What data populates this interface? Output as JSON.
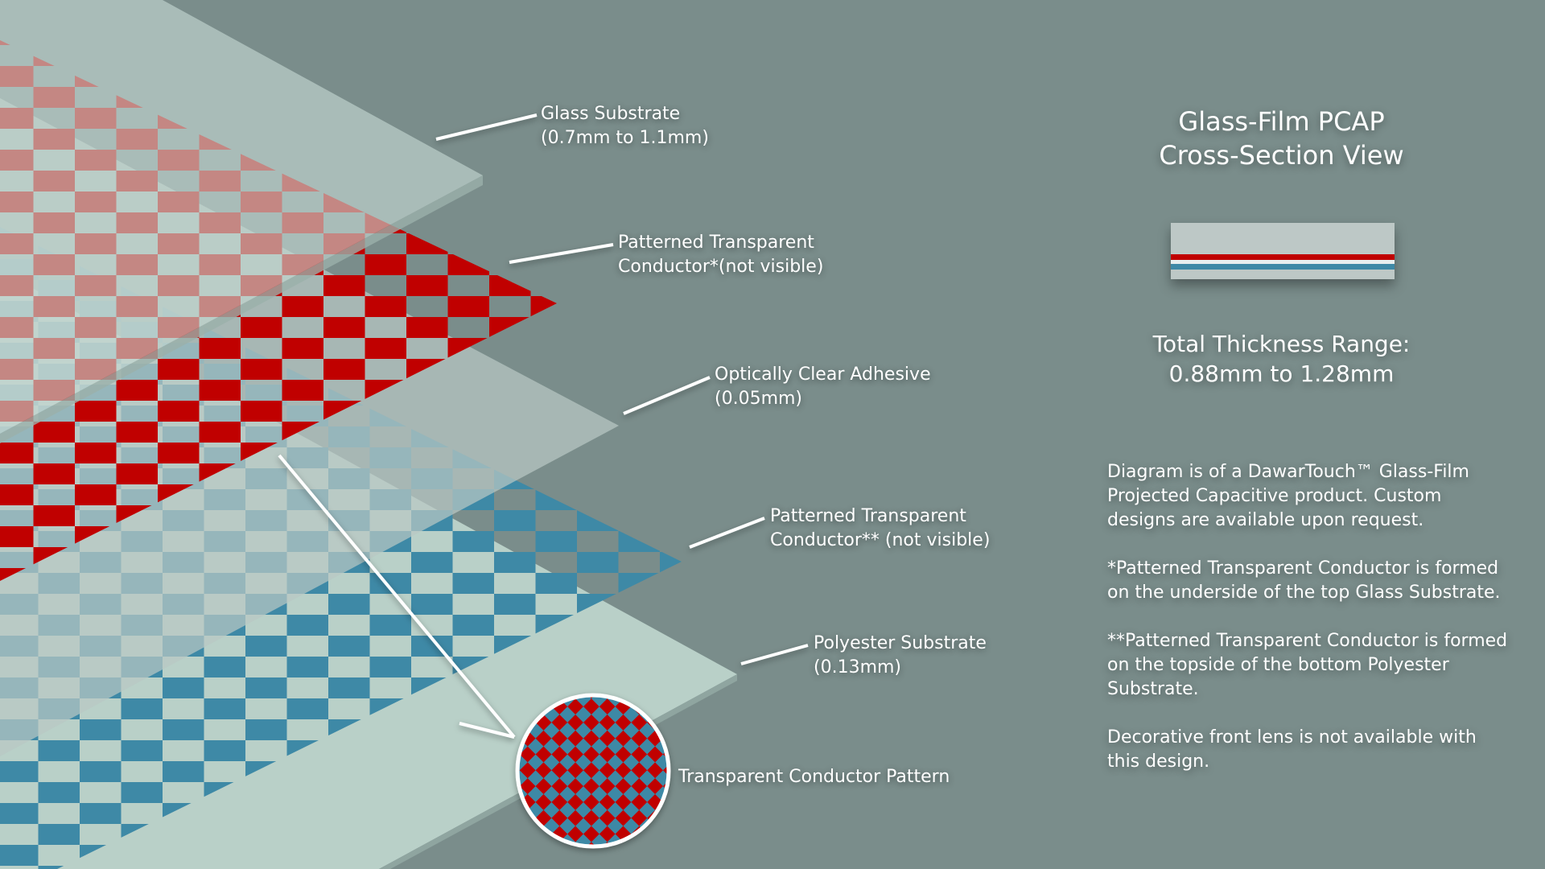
{
  "colors": {
    "background": "#7a8d8b",
    "glass": "#c6dad3",
    "polyester": "#b9d0c8",
    "red_conductor": "#c00000",
    "blue_conductor": "#3e89a6",
    "oca": "#b8c7c4"
  },
  "labels": {
    "glass_substrate": [
      "Glass Substrate",
      "(0.7mm to 1.1mm)"
    ],
    "conductor_top": [
      "Patterned Transparent",
      "Conductor*(not visible)"
    ],
    "adhesive": [
      "Optically Clear Adhesive",
      "(0.05mm)"
    ],
    "conductor_bottom": [
      "Patterned Transparent",
      "Conductor** (not visible)"
    ],
    "polyester_substrate": [
      "Polyester Substrate",
      "(0.13mm)"
    ],
    "pattern": "Transparent Conductor Pattern"
  },
  "panel": {
    "title": [
      "Glass-Film PCAP",
      "Cross-Section View"
    ],
    "thickness": [
      "Total Thickness Range:",
      "0.88mm to 1.28mm"
    ],
    "notes": [
      "Diagram is of a DawarTouch™ Glass-Film Projected Capacitive product. Custom designs are available upon request.",
      "*Patterned Transparent Conductor is formed on the underside of the top Glass Substrate.",
      "**Patterned Transparent Conductor is formed on the topside of the bottom Polyester Substrate.",
      "Decorative front lens is not available with this design."
    ]
  }
}
